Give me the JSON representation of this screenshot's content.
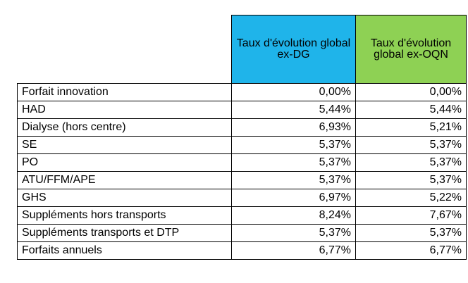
{
  "table": {
    "headers": {
      "dg": "Taux d'évolution global ex-DG",
      "oqn": "Taux d'évolution global ex-OQN"
    },
    "rows": [
      {
        "label": "Forfait innovation",
        "dg": "0,00%",
        "oqn": "0,00%"
      },
      {
        "label": "HAD",
        "dg": "5,44%",
        "oqn": "5,44%"
      },
      {
        "label": "Dialyse (hors centre)",
        "dg": "6,93%",
        "oqn": "5,21%"
      },
      {
        "label": "SE",
        "dg": "5,37%",
        "oqn": "5,37%"
      },
      {
        "label": "PO",
        "dg": "5,37%",
        "oqn": "5,37%"
      },
      {
        "label": "ATU/FFM/APE",
        "dg": "5,37%",
        "oqn": "5,37%"
      },
      {
        "label": "GHS",
        "dg": "6,97%",
        "oqn": "5,22%"
      },
      {
        "label": "Suppléments hors transports",
        "dg": "8,24%",
        "oqn": "7,67%"
      },
      {
        "label": "Suppléments transports et DTP",
        "dg": "5,37%",
        "oqn": "5,37%"
      },
      {
        "label": "Forfaits annuels",
        "dg": "6,77%",
        "oqn": "6,77%"
      }
    ]
  },
  "colors": {
    "header_dg": "#1fb4ea",
    "header_oqn": "#8ed154"
  }
}
